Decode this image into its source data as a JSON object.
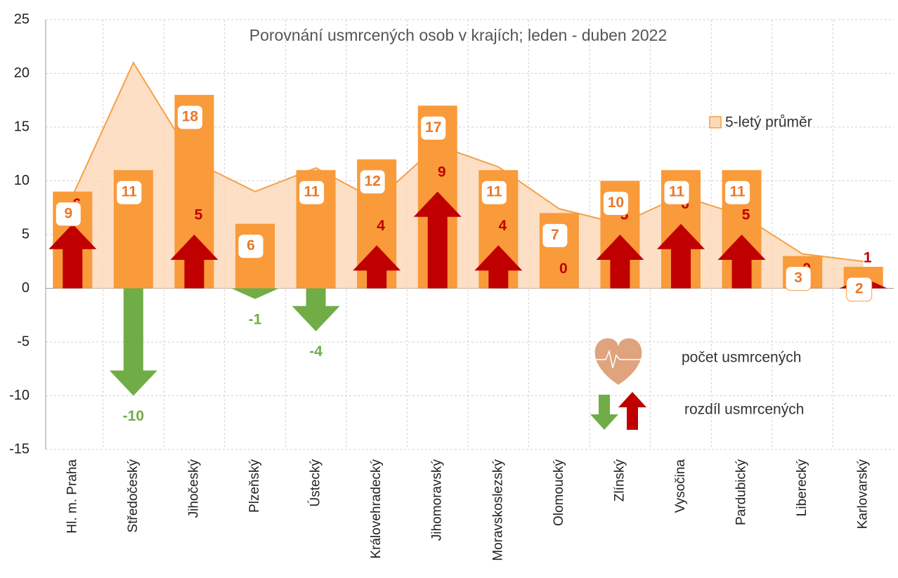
{
  "chart_data": {
    "type": "bar",
    "title": "Porovnání usmrcených osob v krajích; leden - duben 2022",
    "categories": [
      "Hl. m. Praha",
      "Středočeský",
      "Jihočeský",
      "Plzeňský",
      "Ústecký",
      "Královehradecký",
      "Jihomoravský",
      "Moravskoslezský",
      "Olomoucký",
      "Zlínský",
      "Vysočina",
      "Pardubický",
      "Liberecký",
      "Karlovarský"
    ],
    "series": [
      {
        "name": "5-letý průměr",
        "type": "area",
        "color": "#f5a04a",
        "fill": "#fcd9bb",
        "values": [
          8.6,
          21,
          11.8,
          9,
          11.2,
          8.2,
          13.3,
          11.3,
          7.4,
          6,
          8.6,
          6.8,
          3.2,
          2.5
        ]
      },
      {
        "name": "počet usmrcených",
        "type": "bar",
        "color": "#f99b3a",
        "label_color": "#e8782a",
        "values": [
          9,
          11,
          18,
          6,
          11,
          12,
          17,
          11,
          7,
          10,
          11,
          11,
          3,
          2
        ]
      },
      {
        "name": "rozdíl usmrcených",
        "type": "arrow",
        "color": "#c00000",
        "negative_color": "#70ad47",
        "values": [
          6,
          -10,
          5,
          -1,
          -4,
          4,
          9,
          4,
          0,
          5,
          6,
          5,
          0,
          1
        ]
      }
    ],
    "ylim": [
      -15,
      25
    ],
    "yticks": [
      -15,
      -10,
      -5,
      0,
      5,
      10,
      15,
      20,
      25
    ],
    "grid": true,
    "legend": "upper right"
  }
}
